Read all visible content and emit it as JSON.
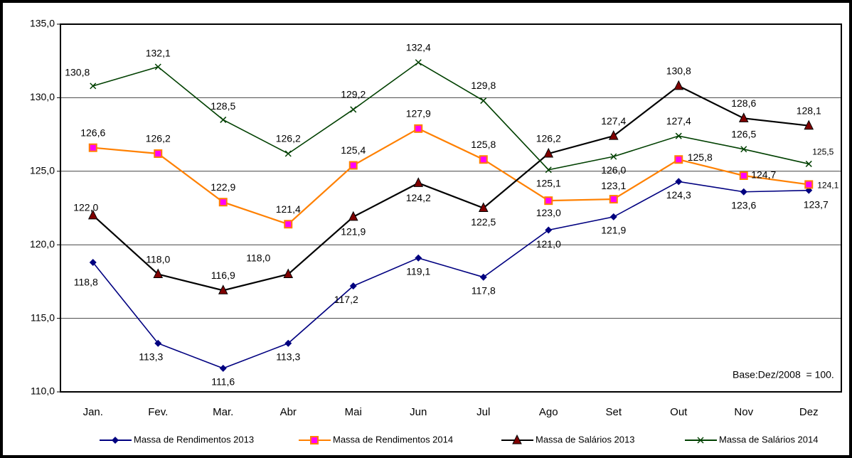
{
  "chart_data": {
    "type": "line",
    "categories": [
      "Jan.",
      "Fev.",
      "Mar.",
      "Abr",
      "Mai",
      "Jun",
      "Jul",
      "Ago",
      "Set",
      "Out",
      "Nov",
      "Dez"
    ],
    "series": [
      {
        "name": "Massa de Rendimentos 2013",
        "color": "#000080",
        "values": [
          118.8,
          113.3,
          111.6,
          113.3,
          117.2,
          119.1,
          117.8,
          121.0,
          121.9,
          124.3,
          123.6,
          123.7
        ],
        "value_labels": [
          "118,8",
          "113,3",
          "111,6",
          "113,3",
          "117,2",
          "119,1",
          "117,8",
          "121,0",
          "121,9",
          "124,3",
          "123,6",
          "123,7"
        ]
      },
      {
        "name": "Massa de Rendimentos 2014",
        "color": "#ff8000",
        "values": [
          126.6,
          126.2,
          122.9,
          121.4,
          125.4,
          127.9,
          125.8,
          123.0,
          123.1,
          125.8,
          124.7,
          124.1
        ],
        "value_labels": [
          "126,6",
          "126,2",
          "122,9",
          "121,4",
          "125,4",
          "127,9",
          "125,8",
          "123,0",
          "123,1",
          "125,8",
          "124,7",
          "124,1"
        ]
      },
      {
        "name": "Massa de Salários 2013",
        "color": "#000000",
        "values": [
          122.0,
          118.0,
          116.9,
          118.0,
          121.9,
          124.2,
          122.5,
          126.2,
          127.4,
          130.8,
          128.6,
          128.1
        ],
        "value_labels": [
          "122,0",
          "118,0",
          "116,9",
          "118,0",
          "121,9",
          "124,2",
          "122,5",
          "126,2",
          "127,4",
          "130,8",
          "128,6",
          "128,1"
        ]
      },
      {
        "name": "Massa de Salários 2014",
        "color": "#004000",
        "values": [
          130.8,
          132.1,
          128.5,
          126.2,
          129.2,
          132.4,
          129.8,
          125.1,
          126.0,
          127.4,
          126.5,
          125.5
        ],
        "value_labels": [
          "130,8",
          "132,1",
          "128,5",
          "126,2",
          "129,2",
          "132,4",
          "129,8",
          "125,1",
          "126,0",
          "127,4",
          "126,5",
          "125,5"
        ]
      }
    ],
    "ylim": [
      110,
      135
    ],
    "yticks": [
      {
        "value": 110,
        "label": "110,0"
      },
      {
        "value": 115,
        "label": "115,0"
      },
      {
        "value": 120,
        "label": "120,0"
      },
      {
        "value": 125,
        "label": "125,0"
      },
      {
        "value": 130,
        "label": "130,0"
      },
      {
        "value": 135,
        "label": "135,0"
      }
    ],
    "grid": true,
    "legend": "bottom",
    "annotation": "Base:Dez/2008  = 100."
  }
}
